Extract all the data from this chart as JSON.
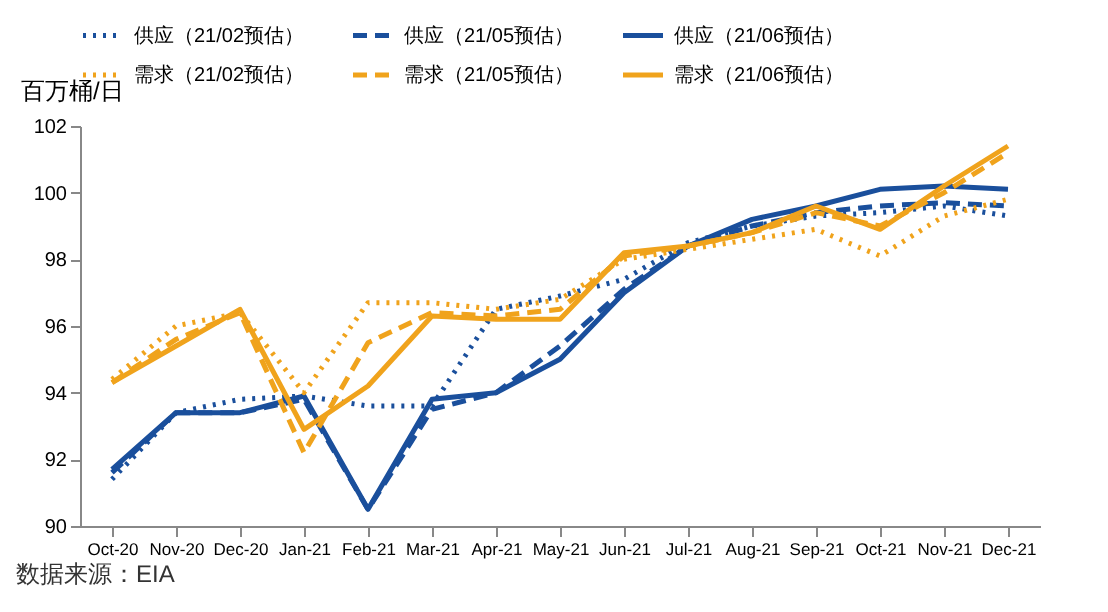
{
  "chart_data": {
    "type": "line",
    "ylabel": "百万桶/日",
    "annotations": [
      "数据来源：EIA"
    ],
    "categories": [
      "Oct-20",
      "Nov-20",
      "Dec-20",
      "Jan-21",
      "Feb-21",
      "Mar-21",
      "Apr-21",
      "May-21",
      "Jun-21",
      "Jul-21",
      "Aug-21",
      "Sep-21",
      "Oct-21",
      "Nov-21",
      "Dec-21"
    ],
    "ylim": [
      90,
      102
    ],
    "yticks": [
      90,
      92,
      94,
      96,
      98,
      100,
      102
    ],
    "grid": false,
    "legend": "top",
    "marker": "none",
    "series": [
      {
        "name": "供应（21/02预估）",
        "color": "#1a4f9c",
        "line_style": "dotted",
        "values": [
          91.4,
          93.4,
          93.8,
          93.9,
          93.6,
          93.6,
          96.5,
          96.9,
          97.4,
          98.5,
          99.0,
          99.3,
          99.4,
          99.6,
          99.3
        ]
      },
      {
        "name": "供应（21/05预估）",
        "color": "#1a4f9c",
        "line_style": "dashed",
        "values": [
          91.6,
          93.4,
          93.4,
          93.8,
          90.5,
          93.5,
          94.0,
          95.4,
          97.1,
          98.4,
          99.0,
          99.4,
          99.6,
          99.7,
          99.6
        ]
      },
      {
        "name": "供应（21/06预估）",
        "color": "#1a4f9c",
        "line_style": "solid",
        "values": [
          91.7,
          93.4,
          93.4,
          93.9,
          90.5,
          93.8,
          94.0,
          95.0,
          97.0,
          98.4,
          99.2,
          99.6,
          100.1,
          100.2,
          100.1
        ]
      },
      {
        "name": "需求（21/02预估）",
        "color": "#f0a31c",
        "line_style": "dotted",
        "values": [
          94.4,
          96.0,
          96.4,
          94.0,
          96.7,
          96.7,
          96.5,
          96.8,
          98.0,
          98.3,
          98.6,
          98.9,
          98.1,
          99.3,
          99.8
        ]
      },
      {
        "name": "需求（21/05预估）",
        "color": "#f0a31c",
        "line_style": "dashed",
        "values": [
          94.3,
          95.6,
          96.4,
          92.2,
          95.5,
          96.4,
          96.3,
          96.5,
          98.1,
          98.4,
          98.8,
          99.4,
          99.0,
          100.0,
          101.2
        ]
      },
      {
        "name": "需求（21/06预估）",
        "color": "#f0a31c",
        "line_style": "solid",
        "values": [
          94.3,
          95.4,
          96.5,
          92.9,
          94.2,
          96.3,
          96.2,
          96.2,
          98.2,
          98.4,
          98.8,
          99.6,
          98.9,
          100.2,
          101.4
        ]
      }
    ]
  }
}
